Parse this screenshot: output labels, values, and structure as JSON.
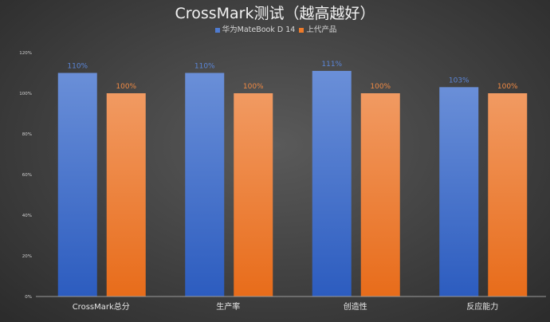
{
  "chart_data": {
    "type": "bar",
    "title": "CrossMark测试（越高越好）",
    "categories": [
      "CrossMark总分",
      "生产率",
      "创造性",
      "反应能力"
    ],
    "series": [
      {
        "name": "华为MateBook D 14",
        "values": [
          110,
          110,
          111,
          103
        ],
        "labels": [
          "110%",
          "110%",
          "111%",
          "103%"
        ],
        "color": "#4f7bd0"
      },
      {
        "name": "上代产品",
        "values": [
          100,
          100,
          100,
          100
        ],
        "labels": [
          "100%",
          "100%",
          "100%",
          "100%"
        ],
        "color": "#ee7b2a"
      }
    ],
    "ylim": [
      0,
      120
    ],
    "yticks": [
      "0%",
      "20%",
      "40%",
      "60%",
      "80%",
      "100%",
      "120%"
    ],
    "grid": false,
    "legend": "top-center"
  }
}
